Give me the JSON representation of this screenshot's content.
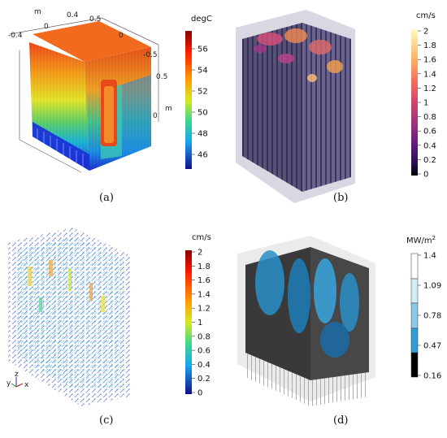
{
  "panels": [
    {
      "id": "a",
      "caption": "(a)",
      "axis_labels": {
        "m_top": "m",
        "m_right": "m",
        "t_neg04": "-0.4",
        "t_0_top": "0",
        "t_04": "0.4",
        "t_05_top": "0.5",
        "t_0_mid": "0",
        "t_neg05": "-0.5",
        "t_05_right": "0.5",
        "t_0_right": "0"
      },
      "colorbar": {
        "title": "degC",
        "ticks": [
          "56",
          "54",
          "52",
          "50",
          "48",
          "46"
        ]
      }
    },
    {
      "id": "b",
      "caption": "(b)",
      "colorbar": {
        "title": "cm/s",
        "ticks": [
          "2",
          "1.8",
          "1.6",
          "1.4",
          "1.2",
          "1",
          "0.8",
          "0.6",
          "0.4",
          "0.2",
          "0"
        ]
      }
    },
    {
      "id": "c",
      "caption": "(c)",
      "triad": {
        "y": "y",
        "z": "z",
        "x": "x"
      },
      "colorbar": {
        "title": "cm/s",
        "ticks": [
          "2",
          "1.8",
          "1.6",
          "1.4",
          "1.2",
          "1",
          "0.8",
          "0.6",
          "0.4",
          "0.2",
          "0"
        ]
      }
    },
    {
      "id": "d",
      "caption": "(d)",
      "colorbar": {
        "title_base": "MW/m",
        "title_sup": "2",
        "ticks": [
          "1.4",
          "1.09",
          "0.78",
          "0.47",
          "0.16"
        ]
      }
    }
  ],
  "colors": {
    "jet_top": "#b30000",
    "jet_bottom": "#1a1aa8",
    "magma_top": "#fcfdbf",
    "magma_bottom": "#000004",
    "heatflux_dark": "#000000",
    "heatflux_blue": "#2a9fd6"
  }
}
